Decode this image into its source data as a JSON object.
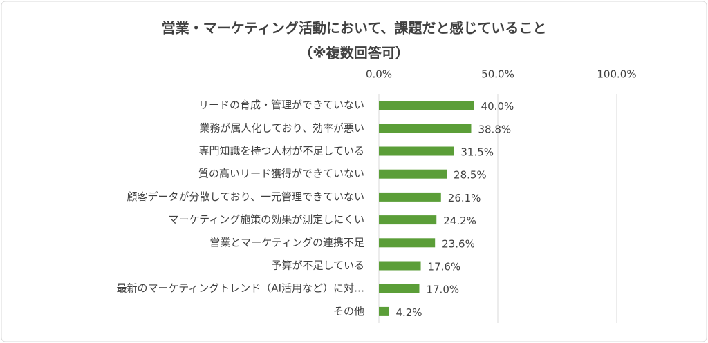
{
  "chart_data": {
    "type": "bar",
    "orientation": "horizontal",
    "title": "営業・マーケティング活動において、課題だと感じていること",
    "subtitle": "（※複数回答可）",
    "categories": [
      "リードの育成・管理ができていない",
      "業務が属人化しており、効率が悪い",
      "専門知識を持つ人材が不足している",
      "質の高いリード獲得ができていない",
      "顧客データが分散しており、一元管理できていない",
      "マーケティング施策の効果が測定しにくい",
      "営業とマーケティングの連携不足",
      "予算が不足している",
      "最新のマーケティングトレンド（AI活用など）に対…",
      "その他"
    ],
    "values": [
      40.0,
      38.8,
      31.5,
      28.5,
      26.1,
      24.2,
      23.6,
      17.6,
      17.0,
      4.2
    ],
    "value_labels": [
      "40.0%",
      "38.8%",
      "31.5%",
      "28.5%",
      "26.1%",
      "24.2%",
      "23.6%",
      "17.6%",
      "17.0%",
      "4.2%"
    ],
    "color": "#5b9e38",
    "xlim": [
      0,
      100
    ],
    "xticks": [
      {
        "value": 0,
        "label": "0.0%"
      },
      {
        "value": 50,
        "label": "50.0%"
      },
      {
        "value": 100,
        "label": "100.0%"
      }
    ],
    "grid": true
  }
}
